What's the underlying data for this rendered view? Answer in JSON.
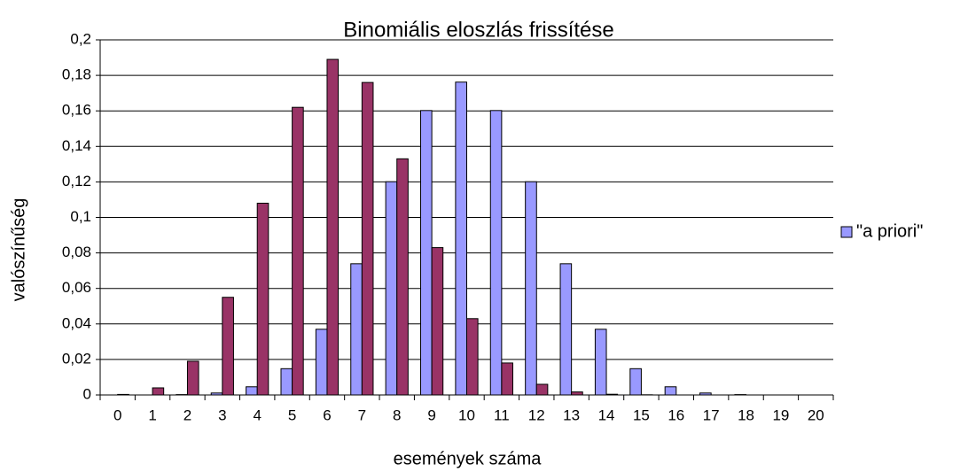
{
  "chart_data": {
    "type": "bar",
    "title": "Binomiális eloszlás frissítése",
    "xlabel": "események száma",
    "ylabel": "valószínűség",
    "categories": [
      "0",
      "1",
      "2",
      "3",
      "4",
      "5",
      "6",
      "7",
      "8",
      "9",
      "10",
      "11",
      "12",
      "13",
      "14",
      "15",
      "16",
      "17",
      "18",
      "19",
      "20"
    ],
    "series": [
      {
        "name": "\"a priori\"",
        "color": "#9999ff",
        "values": [
          0,
          0,
          0.0002,
          0.0011,
          0.0046,
          0.0148,
          0.037,
          0.0739,
          0.1201,
          0.1602,
          0.1762,
          0.1602,
          0.1201,
          0.0739,
          0.037,
          0.0148,
          0.0046,
          0.0011,
          0.0002,
          0,
          0
        ]
      },
      {
        "color": "#993366",
        "values": [
          0.0003,
          0.004,
          0.019,
          0.055,
          0.108,
          0.162,
          0.189,
          0.176,
          0.133,
          0.083,
          0.043,
          0.018,
          0.006,
          0.0017,
          0.0004,
          0.0001,
          0,
          0,
          0,
          0,
          0
        ]
      }
    ],
    "ylim": [
      0,
      0.2
    ],
    "yticks": [
      0,
      {
        "value": 0.02,
        "label": "0,02"
      },
      {
        "value": 0.04,
        "label": "0,04"
      },
      {
        "value": 0.06,
        "label": "0,06"
      },
      {
        "value": 0.08,
        "label": "0,08"
      },
      {
        "value": 0.1,
        "label": "0,1"
      },
      {
        "value": 0.12,
        "label": "0,12"
      },
      {
        "value": 0.14,
        "label": "0,14"
      },
      {
        "value": 0.16,
        "label": "0,16"
      },
      {
        "value": 0.18,
        "label": "0,18"
      },
      {
        "value": 0.2,
        "label": "0,2"
      }
    ],
    "grid": true,
    "legend": "right"
  }
}
